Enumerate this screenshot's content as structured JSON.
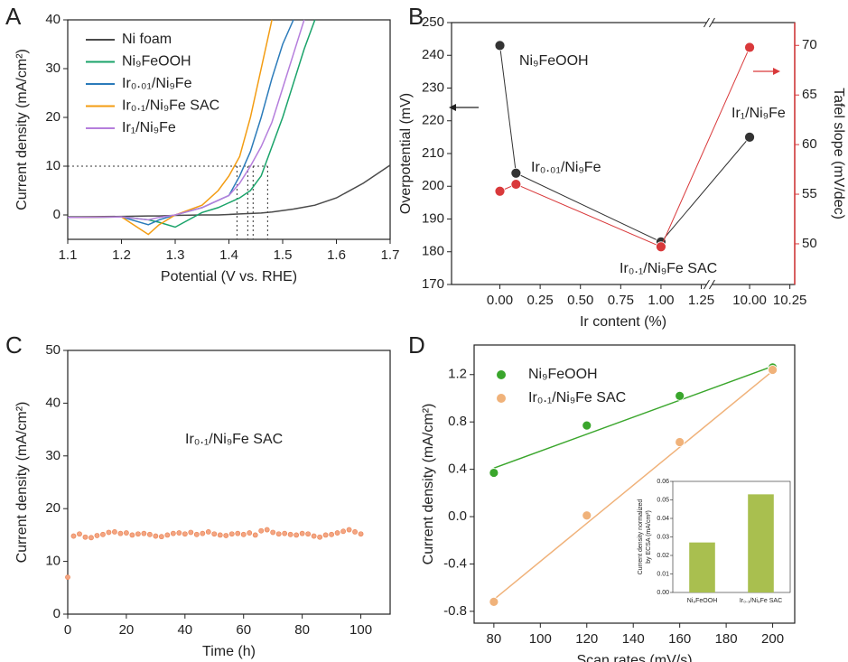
{
  "chart_data": [
    {
      "panel": "A",
      "type": "line",
      "xlabel": "Potential (V vs. RHE)",
      "ylabel": "Current density (mA/cm²)",
      "x": [
        1.1,
        1.2,
        1.25,
        1.27,
        1.3,
        1.35,
        1.38,
        1.4,
        1.42,
        1.44,
        1.46,
        1.48,
        1.5,
        1.52,
        1.54,
        1.56,
        1.6,
        1.65,
        1.7
      ],
      "series": [
        {
          "name": "Ni foam",
          "color": "#4a4a4a",
          "values": [
            -0.4,
            -0.3,
            -0.2,
            -0.2,
            -0.1,
            0,
            0,
            0.1,
            0.2,
            0.3,
            0.4,
            0.6,
            0.9,
            1.2,
            1.6,
            2,
            3.5,
            6.5,
            10.2
          ]
        },
        {
          "name": "Ni₉FeOOH",
          "color": "#1aa36a",
          "values": [
            -0.5,
            -0.4,
            -1,
            -1.5,
            -2.5,
            0.5,
            1.5,
            2.5,
            3.5,
            5,
            8,
            14,
            20,
            27,
            34,
            40,
            null,
            null,
            null
          ]
        },
        {
          "name": "Ir₀.₀₁/Ni₉Fe",
          "color": "#2b7bba",
          "values": [
            -0.5,
            -0.4,
            -2,
            -1,
            0,
            1.5,
            3,
            4,
            8,
            13,
            20,
            28,
            35,
            40,
            null,
            null,
            null,
            null,
            null
          ]
        },
        {
          "name": "Ir₀.₁/Ni₉Fe SAC",
          "color": "#f39c12",
          "values": [
            -0.5,
            -0.4,
            -4,
            -2,
            0,
            2,
            5,
            8,
            12,
            20,
            30,
            40,
            null,
            null,
            null,
            null,
            null,
            null,
            null
          ]
        },
        {
          "name": "Ir₁/Ni₉Fe",
          "color": "#b57edc",
          "values": [
            -0.5,
            -0.4,
            -1,
            -0.5,
            0,
            1.5,
            3,
            4,
            6.5,
            10,
            14,
            19,
            26,
            33,
            40,
            null,
            null,
            null,
            null
          ]
        }
      ],
      "reference_lines": {
        "y": 10,
        "x": [
          1.415,
          1.435,
          1.445,
          1.472
        ]
      },
      "xlim": [
        1.1,
        1.7
      ],
      "xticks": [
        1.1,
        1.2,
        1.3,
        1.4,
        1.5,
        1.6,
        1.7
      ],
      "ylim": [
        -5,
        40
      ],
      "yticks": [
        0,
        10,
        20,
        30,
        40
      ],
      "legend": "upper left",
      "grid": false
    },
    {
      "panel": "B",
      "type": "line",
      "markers": true,
      "xlabel": "Ir content (%)",
      "ylabel": "Overpotential (mV)",
      "y2label": "Tafel slope (mV/dec)",
      "x": [
        0,
        0.1,
        1,
        10
      ],
      "series": [
        {
          "name": "Overpotential",
          "color": "#333333",
          "values": [
            243,
            204,
            183,
            215
          ]
        },
        {
          "name": "Tafel slope",
          "color": "#d9393b",
          "axis": "y2",
          "values": [
            55.3,
            56,
            49.7,
            69.8
          ]
        }
      ],
      "annotations": [
        "Ni₉FeOOH",
        "Ir₀.₀₁/Ni₉Fe",
        "Ir₀.₁/Ni₉Fe SAC",
        "Ir₁/Ni₉Fe"
      ],
      "xlim": [
        -0.3,
        10.28
      ],
      "xbreak": [
        1.3,
        9.75
      ],
      "xticks": [
        {
          "value": 0,
          "label": "0.00"
        },
        0.25,
        {
          "value": 0.5,
          "label": "0.50"
        },
        0.75,
        {
          "value": 1,
          "label": "1.00"
        },
        1.25,
        {
          "value": 10,
          "label": "10.00"
        },
        10.25
      ],
      "ylim": [
        170,
        250
      ],
      "yticks": [
        170,
        180,
        190,
        200,
        210,
        220,
        230,
        240,
        250
      ],
      "y2lim": [
        45.9,
        72.3
      ],
      "y2ticks": [
        50,
        55,
        60,
        65,
        70
      ],
      "grid": false
    },
    {
      "panel": "C",
      "type": "scatter",
      "xlabel": "Time (h)",
      "ylabel": "Current density (mA/cm²)",
      "annotations": [
        "Ir₀.₁/Ni₉Fe SAC"
      ],
      "x": [
        0,
        2,
        4,
        6,
        8,
        10,
        12,
        14,
        16,
        18,
        20,
        22,
        24,
        26,
        28,
        30,
        32,
        34,
        36,
        38,
        40,
        42,
        44,
        46,
        48,
        50,
        52,
        54,
        56,
        58,
        60,
        62,
        64,
        66,
        68,
        70,
        72,
        74,
        76,
        78,
        80,
        82,
        84,
        86,
        88,
        90,
        92,
        94,
        96,
        98,
        100
      ],
      "series": [
        {
          "name": "Ir₀.₁/Ni₉Fe SAC",
          "color": "#f4a582",
          "values": [
            7,
            14.8,
            15.2,
            14.6,
            14.5,
            14.9,
            15.1,
            15.5,
            15.6,
            15.3,
            15.4,
            15.0,
            15.2,
            15.3,
            15.1,
            14.8,
            14.7,
            15.0,
            15.3,
            15.4,
            15.2,
            15.5,
            15.1,
            15.3,
            15.6,
            15.2,
            15.0,
            14.9,
            15.2,
            15.3,
            15.1,
            15.4,
            15.0,
            15.8,
            16.0,
            15.5,
            15.2,
            15.3,
            15.1,
            15.0,
            15.3,
            15.2,
            14.8,
            14.6,
            15.0,
            15.1,
            15.4,
            15.7,
            16.0,
            15.6,
            15.2
          ]
        }
      ],
      "xlim": [
        0,
        110
      ],
      "xticks": [
        0,
        20,
        40,
        60,
        80,
        100
      ],
      "ylim": [
        0,
        50
      ],
      "yticks": [
        0,
        10,
        20,
        30,
        40,
        50
      ],
      "grid": false
    },
    {
      "panel": "D",
      "type": "scatter",
      "xlabel": "Scan rates (mV/s)",
      "ylabel": "Current density (mA/cm²)",
      "x": [
        80,
        120,
        160,
        200
      ],
      "fit_x": [
        80,
        200
      ],
      "series": [
        {
          "name": "Ni₉FeOOH",
          "color": "#3aa62c",
          "values": [
            0.37,
            0.77,
            1.02,
            1.26
          ],
          "fit_values": [
            0.41,
            1.27
          ]
        },
        {
          "name": "Ir₀.₁/Ni₉Fe SAC",
          "color": "#f0b27a",
          "values": [
            -0.72,
            0.01,
            0.63,
            1.24
          ],
          "fit_values": [
            -0.7,
            1.23
          ]
        }
      ],
      "xlim": [
        71.5,
        209.5
      ],
      "xticks": [
        80,
        100,
        120,
        140,
        160,
        180,
        200
      ],
      "ylim": [
        -0.9,
        1.45
      ],
      "yticks": [
        -0.8,
        -0.4,
        {
          "value": 0,
          "label": "0.0"
        },
        0.4,
        0.8,
        1.2
      ],
      "legend": "upper left",
      "grid": false,
      "inset": {
        "type": "bar",
        "categories": [
          "Ni₉FeOOH",
          "Ir₀.₁/Ni₉Fe SAC"
        ],
        "values": [
          0.027,
          0.053
        ],
        "color": "#a9bf4f",
        "ylabel": [
          "Current density normalized",
          "by ECSA (mA/cm²)"
        ],
        "ylim": [
          0,
          0.06
        ],
        "yticks": [
          {
            "value": 0,
            "label": "0.00"
          },
          0.01,
          0.02,
          0.03,
          0.04,
          0.05,
          0.06
        ]
      }
    }
  ]
}
